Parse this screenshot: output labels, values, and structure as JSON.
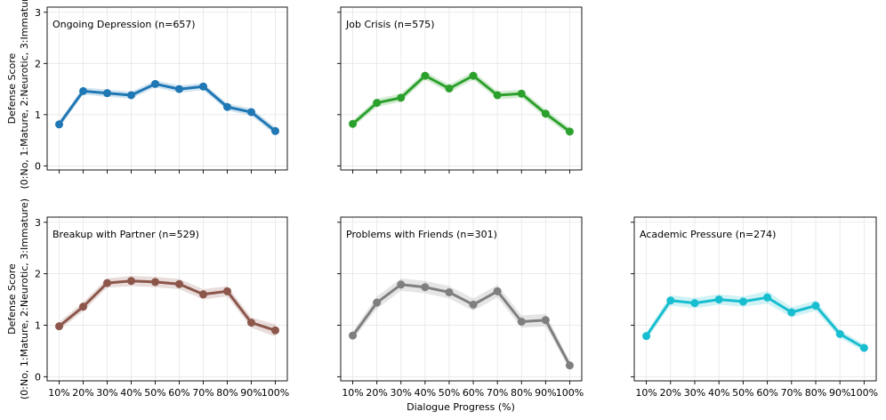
{
  "chart_data": {
    "type": "line",
    "xlabel": "Dialogue Progress (%)",
    "ylabel_line1": "Defense Score",
    "ylabel_line2": "(0:No, 1:Mature, 2:Neurotic, 3:Immature)",
    "categories": [
      "10%",
      "20%",
      "30%",
      "40%",
      "50%",
      "60%",
      "70%",
      "80%",
      "90%",
      "100%"
    ],
    "ylim": [
      -0.08,
      3.1
    ],
    "yticks": [
      "0",
      "1",
      "2",
      "3"
    ],
    "grid": true,
    "panels": [
      {
        "title": "Ongoing Depression (n=657)",
        "color": "#1f77b4",
        "values": [
          0.81,
          1.46,
          1.42,
          1.38,
          1.6,
          1.5,
          1.55,
          1.15,
          1.05,
          0.68
        ],
        "ci": [
          0.07,
          0.07,
          0.07,
          0.07,
          0.07,
          0.07,
          0.07,
          0.07,
          0.07,
          0.08
        ]
      },
      {
        "title": "Job Crisis (n=575)",
        "color": "#2ca02c",
        "values": [
          0.82,
          1.23,
          1.33,
          1.76,
          1.51,
          1.76,
          1.38,
          1.41,
          1.02,
          0.67
        ],
        "ci": [
          0.07,
          0.08,
          0.08,
          0.08,
          0.08,
          0.08,
          0.08,
          0.08,
          0.08,
          0.08
        ]
      },
      {
        "title": "Breakup with Partner (n=529)",
        "color": "#8c564b",
        "values": [
          0.98,
          1.36,
          1.82,
          1.86,
          1.84,
          1.8,
          1.6,
          1.66,
          1.05,
          0.9
        ],
        "ci": [
          0.08,
          0.09,
          0.09,
          0.1,
          0.1,
          0.1,
          0.1,
          0.1,
          0.1,
          0.12
        ]
      },
      {
        "title": "Problems with Friends (n=301)",
        "color": "#7f7f7f",
        "values": [
          0.8,
          1.44,
          1.79,
          1.74,
          1.64,
          1.4,
          1.66,
          1.07,
          1.1,
          0.22
        ],
        "ci": [
          0.08,
          0.12,
          0.12,
          0.12,
          0.12,
          0.12,
          0.12,
          0.12,
          0.12,
          0.08
        ]
      },
      {
        "title": "Academic Pressure (n=274)",
        "color": "#17becf",
        "values": [
          0.79,
          1.48,
          1.43,
          1.5,
          1.46,
          1.54,
          1.25,
          1.38,
          0.83,
          0.56
        ],
        "ci": [
          0.07,
          0.1,
          0.1,
          0.1,
          0.1,
          0.12,
          0.1,
          0.1,
          0.08,
          0.07
        ]
      }
    ]
  }
}
